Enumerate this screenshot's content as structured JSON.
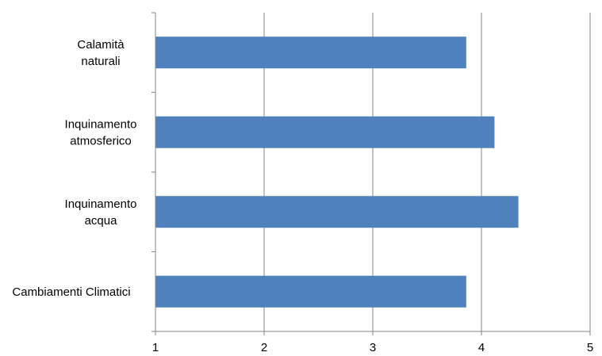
{
  "chart_data": {
    "type": "bar",
    "orientation": "horizontal",
    "categories": [
      [
        "Calamità",
        "naturali"
      ],
      [
        "Inquinamento",
        "atmosferico"
      ],
      [
        "Inquinamento",
        "acqua"
      ],
      [
        "Cambiamenti  Climatici"
      ]
    ],
    "values": [
      3.86,
      4.12,
      4.34,
      3.86
    ],
    "xlim": [
      1,
      5
    ],
    "xticks": [
      1,
      2,
      3,
      4,
      5
    ],
    "grid": "vertical",
    "legend": "none",
    "bar_color": "#4f81bd",
    "grid_color": "#868686",
    "axis_color": "#868686"
  }
}
